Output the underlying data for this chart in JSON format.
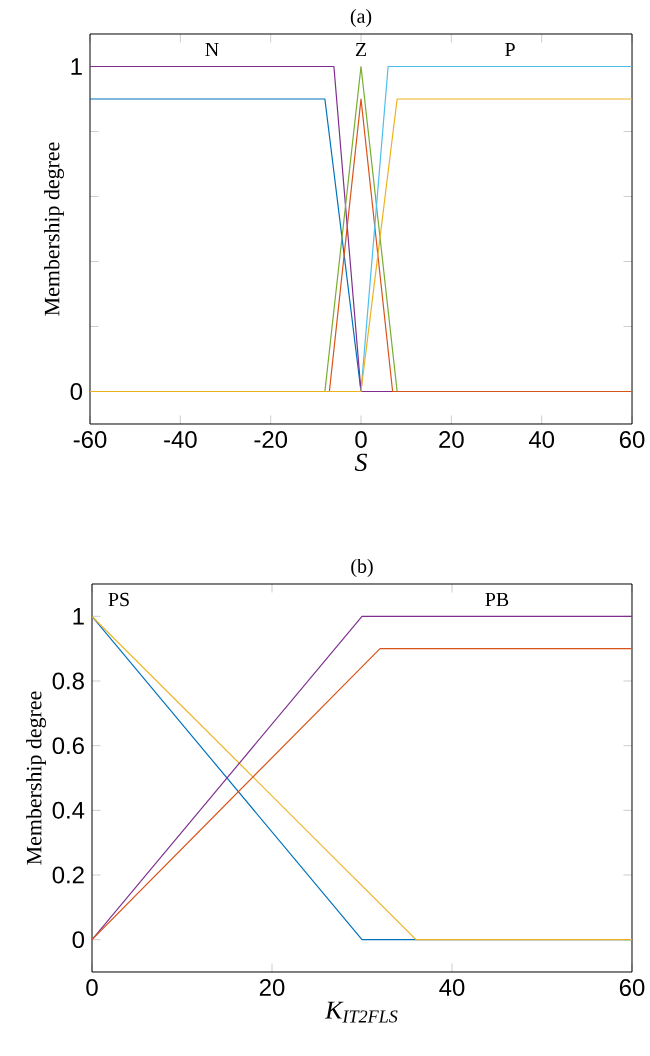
{
  "chart_data": [
    {
      "type": "line",
      "title": "(a)",
      "xlabel": "S",
      "ylabel": "Membership degree",
      "xlim": [
        -60,
        60
      ],
      "xticks": [
        -60,
        -40,
        -20,
        0,
        20,
        40,
        60
      ],
      "ylim": [
        -0.1,
        1.1
      ],
      "yticks": [
        0,
        {
          "value": 0.2,
          "label": null
        },
        {
          "value": 0.4,
          "label": null
        },
        {
          "value": 0.6,
          "label": null
        },
        {
          "value": 0.8,
          "label": null
        },
        1
      ],
      "series": [
        {
          "color": "#0072bd",
          "x": [
            -60,
            -8,
            0,
            60
          ],
          "values": [
            0.9,
            0.9,
            0,
            0
          ]
        },
        {
          "color": "#7e2f8e",
          "x": [
            -60,
            -6,
            0,
            60
          ],
          "values": [
            1,
            1,
            0,
            0
          ]
        },
        {
          "color": "#77ac30",
          "x": [
            -60,
            -8,
            0,
            8,
            60
          ],
          "values": [
            0,
            0,
            1,
            0,
            0
          ]
        },
        {
          "color": "#d95319",
          "x": [
            -60,
            -7,
            0,
            7,
            60
          ],
          "values": [
            0,
            0,
            0.9,
            0,
            0
          ]
        },
        {
          "color": "#4dbeee",
          "x": [
            -60,
            0,
            6,
            60
          ],
          "values": [
            0,
            0,
            1,
            1
          ]
        },
        {
          "color": "#edb120",
          "x": [
            -60,
            0,
            8,
            60
          ],
          "values": [
            0,
            0,
            0.9,
            0.9
          ]
        }
      ],
      "annotations": [
        "N",
        "Z",
        "P"
      ]
    },
    {
      "type": "line",
      "title": "(b)",
      "xlabel": "K$_{IT2FLS}$",
      "ylabel": "Membership degree",
      "xlim": [
        0,
        60
      ],
      "xticks": [
        0,
        20,
        40,
        60
      ],
      "ylim": [
        -0.1,
        1.1
      ],
      "yticks": [
        0,
        0.2,
        0.4,
        0.6,
        0.8,
        1
      ],
      "series": [
        {
          "color": "#0072bd",
          "x": [
            0,
            30,
            60
          ],
          "values": [
            1,
            0,
            0
          ]
        },
        {
          "color": "#edb120",
          "x": [
            0,
            36,
            60
          ],
          "values": [
            1,
            0,
            0
          ]
        },
        {
          "color": "#7e2f8e",
          "x": [
            0,
            30,
            60
          ],
          "values": [
            0,
            1,
            1
          ]
        },
        {
          "color": "#d95319",
          "x": [
            0,
            32,
            60
          ],
          "values": [
            0,
            0.9,
            0.9
          ]
        }
      ],
      "annotations": [
        "PS",
        "PB"
      ]
    }
  ]
}
